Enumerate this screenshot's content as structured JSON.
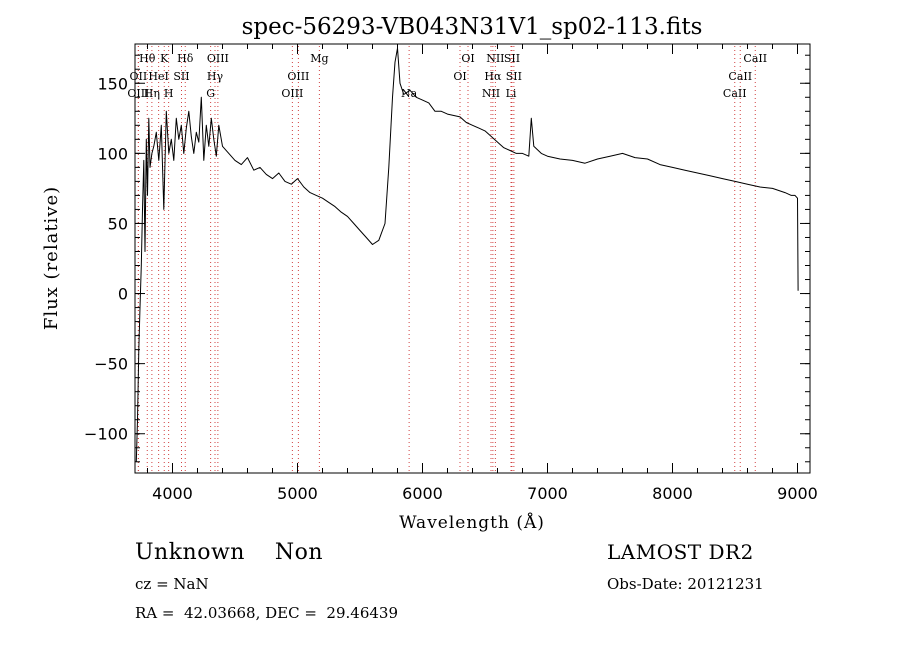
{
  "chart_data": {
    "type": "line",
    "title": "spec-56293-VB043N31V1_sp02-113.fits",
    "xlabel": "Wavelength (Å)",
    "ylabel": "Flux (relative)",
    "xlim": [
      3700,
      9100
    ],
    "ylim": [
      -128,
      178
    ],
    "xticks": [
      4000,
      5000,
      6000,
      7000,
      8000,
      9000
    ],
    "yticks": [
      -100,
      -50,
      0,
      50,
      100,
      150
    ],
    "ytick_labels": [
      "−100",
      "−50",
      "0",
      "50",
      "100",
      "150"
    ],
    "grid": false,
    "series": [
      {
        "values_note_skip": false,
        "x": [
          3710,
          3720,
          3730,
          3740,
          3750,
          3760,
          3770,
          3780,
          3790,
          3800,
          3810,
          3820,
          3835,
          3850,
          3870,
          3890,
          3910,
          3930,
          3950,
          3970,
          3990,
          4010,
          4030,
          4050,
          4070,
          4090,
          4110,
          4130,
          4150,
          4170,
          4190,
          4210,
          4230,
          4250,
          4270,
          4290,
          4310,
          4330,
          4350,
          4370,
          4400,
          4450,
          4500,
          4550,
          4600,
          4650,
          4700,
          4750,
          4800,
          4850,
          4900,
          4950,
          5000,
          5050,
          5100,
          5150,
          5200,
          5250,
          5300,
          5350,
          5400,
          5450,
          5500,
          5550,
          5600,
          5650,
          5700,
          5730,
          5760,
          5780,
          5800,
          5820,
          5850,
          5900,
          5950,
          6000,
          6050,
          6100,
          6150,
          6200,
          6250,
          6300,
          6350,
          6400,
          6450,
          6500,
          6550,
          6600,
          6650,
          6700,
          6750,
          6800,
          6850,
          6870,
          6890,
          6950,
          7000,
          7100,
          7200,
          7300,
          7400,
          7500,
          7600,
          7700,
          7800,
          7900,
          8000,
          8100,
          8200,
          8300,
          8400,
          8500,
          8600,
          8700,
          8800,
          8900,
          8950,
          8980,
          9000,
          9005
        ],
        "y": [
          -120,
          -90,
          -40,
          -10,
          20,
          60,
          95,
          30,
          110,
          70,
          125,
          90,
          100,
          105,
          115,
          95,
          120,
          60,
          130,
          100,
          110,
          95,
          125,
          110,
          120,
          100,
          118,
          130,
          112,
          100,
          115,
          108,
          140,
          95,
          120,
          105,
          125,
          110,
          98,
          120,
          105,
          100,
          95,
          92,
          97,
          88,
          90,
          85,
          82,
          86,
          80,
          78,
          82,
          76,
          72,
          70,
          68,
          65,
          62,
          58,
          55,
          50,
          45,
          40,
          35,
          38,
          50,
          90,
          140,
          165,
          175,
          150,
          142,
          145,
          140,
          138,
          136,
          130,
          130,
          128,
          127,
          126,
          122,
          120,
          118,
          116,
          112,
          108,
          104,
          102,
          100,
          100,
          98,
          125,
          105,
          100,
          98,
          96,
          95,
          93,
          96,
          98,
          100,
          97,
          96,
          92,
          90,
          88,
          86,
          84,
          82,
          80,
          78,
          76,
          75,
          72,
          70,
          70,
          68,
          2
        ]
      }
    ],
    "lines": [
      {
        "label": "Hθ",
        "x": 3798,
        "row": 0
      },
      {
        "label": "OII",
        "x": 3727,
        "row": 1
      },
      {
        "label": "OIII",
        "x": 3727,
        "row": 2
      },
      {
        "label": "K",
        "x": 3934,
        "row": 0
      },
      {
        "label": "HeI",
        "x": 3889,
        "row": 1
      },
      {
        "label": "Hη",
        "x": 3835,
        "row": 2
      },
      {
        "label": "SII",
        "x": 4072,
        "row": 1
      },
      {
        "label": "H",
        "x": 3969,
        "row": 2
      },
      {
        "label": "Hδ",
        "x": 4102,
        "row": 0
      },
      {
        "label": "OIII",
        "x": 4363,
        "row": 0
      },
      {
        "label": "Hγ",
        "x": 4340,
        "row": 1
      },
      {
        "label": "G",
        "x": 4305,
        "row": 2
      },
      {
        "label": "Mg",
        "x": 5175,
        "row": 0
      },
      {
        "label": "OIII",
        "x": 5007,
        "row": 1
      },
      {
        "label": "OIII",
        "x": 4959,
        "row": 2
      },
      {
        "label": "Na",
        "x": 5893,
        "row": 2
      },
      {
        "label": "OI",
        "x": 6364,
        "row": 0
      },
      {
        "label": "OI",
        "x": 6300,
        "row": 1
      },
      {
        "label": "NII",
        "x": 6583,
        "row": 0
      },
      {
        "label": "SII",
        "x": 6716,
        "row": 0
      },
      {
        "label": "Hα",
        "x": 6563,
        "row": 1
      },
      {
        "label": "SII",
        "x": 6731,
        "row": 1
      },
      {
        "label": "NII",
        "x": 6548,
        "row": 2
      },
      {
        "label": "Li",
        "x": 6708,
        "row": 2
      },
      {
        "label": "CaII",
        "x": 8662,
        "row": 0
      },
      {
        "label": "CaII",
        "x": 8542,
        "row": 1
      },
      {
        "label": "CaII",
        "x": 8498,
        "row": 2
      }
    ]
  },
  "footer": {
    "object_class": "Unknown    Non",
    "survey": "LAMOST DR2",
    "cz": "cz = NaN",
    "obs_date": "Obs-Date: 20121231",
    "radec": "RA =  42.03668, DEC =  29.46439"
  },
  "colors": {
    "line_marker": "#d04040",
    "spectrum": "#000000"
  }
}
